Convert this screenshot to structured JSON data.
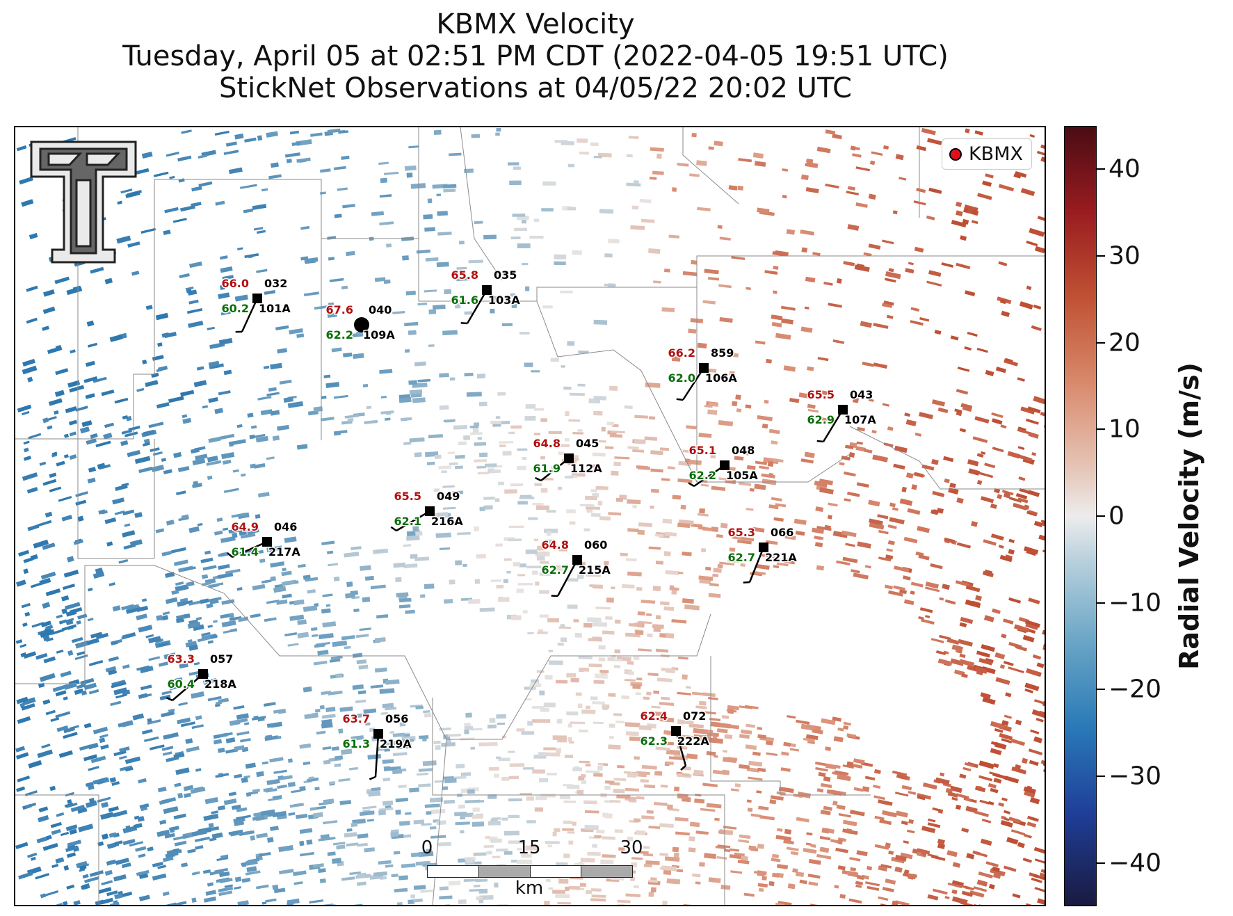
{
  "title": {
    "line1": "KBMX Velocity",
    "line2": "Tuesday, April 05 at 02:51 PM CDT (2022-04-05 19:51 UTC)",
    "line3": "StickNet Observations at 04/05/22 20:02 UTC"
  },
  "legend": {
    "label": "KBMX",
    "marker_color": "#e0101a"
  },
  "logo": {
    "name": "texas-tech-logo"
  },
  "colorbar": {
    "label": "Radial Velocity (m/s)",
    "ticks": [
      "40",
      "30",
      "20",
      "10",
      "0",
      "−10",
      "−20",
      "−30",
      "−40"
    ],
    "range": [
      -45,
      45
    ]
  },
  "scalebar": {
    "ticks": [
      "0",
      "15",
      "30"
    ],
    "unit": "km"
  },
  "colors": {
    "temperature": "#b01010",
    "dewpoint": "#0a6e0a",
    "station_text": "#000000"
  },
  "stations": [
    {
      "temp": "66.0",
      "dew": "60.2",
      "time": "032",
      "id": "101A"
    },
    {
      "temp": "67.6",
      "dew": "62.2",
      "time": "040",
      "id": "109A",
      "calm": true
    },
    {
      "temp": "65.8",
      "dew": "61.6",
      "time": "035",
      "id": "103A"
    },
    {
      "temp": "66.2",
      "dew": "62.0",
      "time": "859",
      "id": "106A"
    },
    {
      "temp": "65.5",
      "dew": "62.9",
      "time": "043",
      "id": "107A"
    },
    {
      "temp": "64.8",
      "dew": "61.9",
      "time": "045",
      "id": "112A"
    },
    {
      "temp": "65.1",
      "dew": "62.2",
      "time": "048",
      "id": "105A"
    },
    {
      "temp": "65.5",
      "dew": "62.1",
      "time": "049",
      "id": "216A"
    },
    {
      "temp": "64.9",
      "dew": "61.4",
      "time": "046",
      "id": "217A"
    },
    {
      "temp": "64.8",
      "dew": "62.7",
      "time": "060",
      "id": "215A"
    },
    {
      "temp": "65.3",
      "dew": "62.7",
      "time": "066",
      "id": "221A"
    },
    {
      "temp": "63.3",
      "dew": "60.4",
      "time": "057",
      "id": "218A"
    },
    {
      "temp": "63.7",
      "dew": "61.3",
      "time": "056",
      "id": "219A"
    },
    {
      "temp": "62.4",
      "dew": "62.3",
      "time": "072",
      "id": "222A"
    }
  ]
}
